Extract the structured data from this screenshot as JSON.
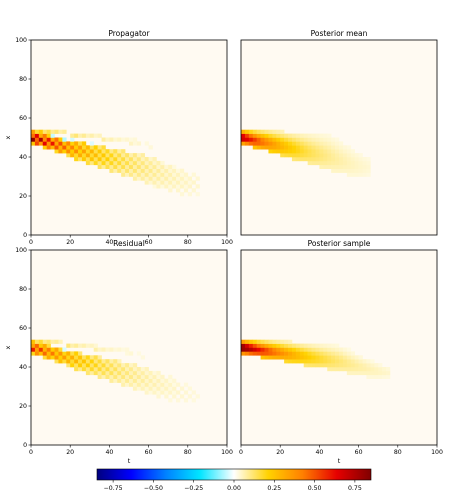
{
  "chart_data": [
    {
      "type": "heatmap",
      "title": "Propagator",
      "xlabel": "",
      "ylabel": "x",
      "xlim": [
        0,
        100
      ],
      "ylim": [
        0,
        100
      ],
      "xticks": [
        "0",
        "20",
        "40",
        "60",
        "80",
        "100"
      ],
      "yticks": [
        "0",
        "20",
        "40",
        "60",
        "80",
        "100"
      ],
      "feature": {
        "origin_t": 0,
        "origin_x": 50,
        "peak": 0.85,
        "wedge_lower_end": [
          80,
          20
        ],
        "wedge_upper_end": [
          55,
          48
        ],
        "extent_t": 85,
        "checkerboard": true
      }
    },
    {
      "type": "heatmap",
      "title": "Posterior mean",
      "xlabel": "",
      "ylabel": "",
      "xlim": [
        0,
        100
      ],
      "ylim": [
        0,
        100
      ],
      "xticks": [],
      "yticks": [],
      "feature": {
        "origin_t": 0,
        "origin_x": 50,
        "peak": 0.7,
        "wedge_lower_end": [
          60,
          30
        ],
        "wedge_upper_end": [
          45,
          50
        ],
        "extent_t": 65,
        "checkerboard": false
      }
    },
    {
      "type": "heatmap",
      "title": "Residual",
      "xlabel": "t",
      "ylabel": "x",
      "xlim": [
        0,
        100
      ],
      "ylim": [
        0,
        100
      ],
      "xticks": [
        "0",
        "20",
        "40",
        "60",
        "80",
        "100"
      ],
      "yticks": [
        "0",
        "20",
        "40",
        "60",
        "80",
        "100"
      ],
      "feature": {
        "origin_t": 0,
        "origin_x": 50,
        "peak": 0.6,
        "wedge_lower_end": [
          80,
          20
        ],
        "wedge_upper_end": [
          50,
          48
        ],
        "extent_t": 85,
        "checkerboard": true
      }
    },
    {
      "type": "heatmap",
      "title": "Posterior sample",
      "xlabel": "t",
      "ylabel": "",
      "xlim": [
        0,
        100
      ],
      "ylim": [
        0,
        100
      ],
      "xticks": [
        "0",
        "20",
        "40",
        "60",
        "80",
        "100"
      ],
      "yticks": [],
      "feature": {
        "origin_t": 0,
        "origin_x": 50,
        "peak": 0.85,
        "wedge_lower_end": [
          70,
          35
        ],
        "wedge_upper_end": [
          50,
          50
        ],
        "extent_t": 75,
        "checkerboard": false
      }
    }
  ],
  "colorbar": {
    "range": [
      -0.85,
      0.85
    ],
    "ticks": [
      "−0.75",
      "−0.50",
      "−0.25",
      "0.00",
      "0.25",
      "0.50",
      "0.75"
    ],
    "tick_values": [
      -0.75,
      -0.5,
      -0.25,
      0,
      0.25,
      0.5,
      0.75
    ],
    "colors": [
      "#00007f",
      "#0000ff",
      "#0080ff",
      "#00e5ff",
      "#ffffff",
      "#ffd200",
      "#ff8000",
      "#e60000",
      "#800000"
    ]
  }
}
